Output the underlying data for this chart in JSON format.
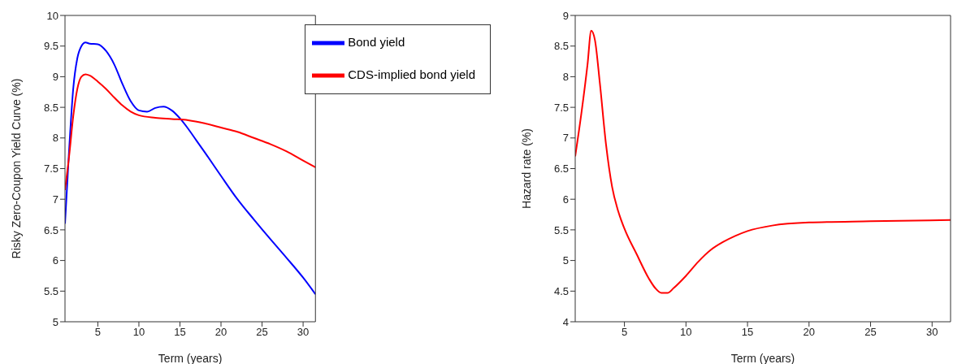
{
  "chart_data": [
    {
      "type": "line",
      "xlabel": "Term (years)",
      "ylabel": "Risky Zero-Coupon Yield Curve (%)",
      "xlim": [
        1,
        31.5
      ],
      "xticks": [
        5,
        10,
        15,
        20,
        25,
        30
      ],
      "ylim": [
        5,
        10
      ],
      "yticks": [
        5,
        5.5,
        6,
        6.5,
        7,
        7.5,
        8,
        8.5,
        9,
        9.5,
        10
      ],
      "grid": false,
      "legend": "top right",
      "marker": "none",
      "line_style": "solid",
      "series": [
        {
          "name": "Bond yield",
          "color": "#0000ff",
          "x": [
            1,
            1.5,
            2,
            2.5,
            3,
            3.5,
            4,
            5,
            6,
            7,
            8,
            9,
            10,
            11,
            12,
            13,
            14,
            15,
            16,
            17,
            18,
            20,
            22,
            24,
            26,
            28,
            30,
            31.5
          ],
          "values": [
            6.6,
            7.8,
            8.8,
            9.3,
            9.5,
            9.56,
            9.54,
            9.53,
            9.42,
            9.2,
            8.88,
            8.6,
            8.45,
            8.43,
            8.49,
            8.51,
            8.45,
            8.32,
            8.15,
            7.96,
            7.77,
            7.38,
            7.0,
            6.67,
            6.35,
            6.04,
            5.72,
            5.45
          ]
        },
        {
          "name": "CDS-implied bond yield",
          "color": "#ff0000",
          "x": [
            1,
            1.5,
            2,
            2.5,
            3,
            3.5,
            4,
            5,
            6,
            7,
            8,
            9,
            10,
            12,
            14,
            16,
            18,
            20,
            22,
            24,
            26,
            28,
            30,
            31.5
          ],
          "values": [
            7.15,
            7.7,
            8.35,
            8.8,
            9.0,
            9.04,
            9.02,
            8.92,
            8.8,
            8.66,
            8.53,
            8.43,
            8.37,
            8.33,
            8.31,
            8.29,
            8.24,
            8.17,
            8.1,
            8.0,
            7.9,
            7.78,
            7.63,
            7.52
          ]
        }
      ]
    },
    {
      "type": "line",
      "xlabel": "Term (years)",
      "ylabel": "Hazard rate (%)",
      "xlim": [
        1,
        31.5
      ],
      "xticks": [
        5,
        10,
        15,
        20,
        25,
        30
      ],
      "ylim": [
        4,
        9
      ],
      "yticks": [
        4,
        4.5,
        5,
        5.5,
        6,
        6.5,
        7,
        7.5,
        8,
        8.5,
        9
      ],
      "grid": false,
      "legend": false,
      "marker": "none",
      "line_style": "solid",
      "series": [
        {
          "color": "#ff0000",
          "x": [
            1,
            1.5,
            2,
            2.3,
            2.6,
            3,
            3.5,
            4,
            4.5,
            5,
            6,
            7,
            7.5,
            8,
            8.5,
            9,
            10,
            11,
            12,
            13,
            14,
            15,
            17,
            20,
            25,
            31.5
          ],
          "values": [
            6.7,
            7.4,
            8.2,
            8.75,
            8.6,
            7.9,
            6.9,
            6.2,
            5.8,
            5.52,
            5.1,
            4.7,
            4.55,
            4.47,
            4.47,
            4.55,
            4.75,
            4.98,
            5.17,
            5.3,
            5.4,
            5.48,
            5.57,
            5.62,
            5.64,
            5.66
          ]
        }
      ]
    }
  ]
}
